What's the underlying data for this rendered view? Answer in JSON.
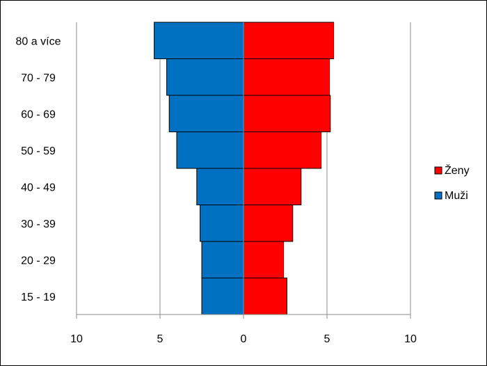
{
  "chart_data": {
    "type": "bar",
    "orientation": "horizontal",
    "layout": "population-pyramid",
    "categories": [
      "80 a více",
      "70 - 79",
      "60 - 69",
      "50 - 59",
      "40 - 49",
      "30 - 39",
      "20 - 29",
      "15 - 19"
    ],
    "series": [
      {
        "name": "Ženy",
        "color": "#ff0000",
        "side": "right",
        "values": [
          5.4,
          5.15,
          5.2,
          4.65,
          3.45,
          2.95,
          2.4,
          2.6
        ]
      },
      {
        "name": "Muži",
        "color": "#0070c0",
        "side": "left",
        "values": [
          5.35,
          4.6,
          4.45,
          4.0,
          2.8,
          2.6,
          2.5,
          2.5
        ]
      }
    ],
    "xlim": [
      -10,
      10
    ],
    "xticks": [
      -10,
      -5,
      0,
      5,
      10
    ],
    "xtick_labels": [
      "10",
      "5",
      "0",
      "5",
      "10"
    ],
    "grid": "vertical",
    "legend_position": "right",
    "title": "",
    "xlabel": "",
    "ylabel": ""
  }
}
